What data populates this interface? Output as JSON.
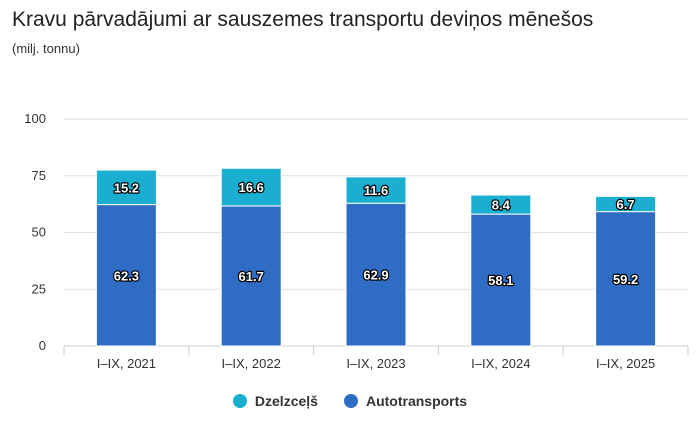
{
  "title": "Kravu pārvadājumi ar sauszemes transportu deviņos mēnešos",
  "subtitle": "(milj. tonnu)",
  "chart_data": {
    "type": "bar",
    "stacked": true,
    "categories": [
      "I–IX, 2021",
      "I–IX, 2022",
      "I–IX, 2023",
      "I–IX, 2024",
      "I–IX, 2025"
    ],
    "series": [
      {
        "name": "Autotransports",
        "color": "#2f6dc4",
        "values": [
          62.3,
          61.7,
          62.9,
          58.1,
          59.2
        ]
      },
      {
        "name": "Dzelzceļš",
        "color": "#1aafd0",
        "values": [
          15.2,
          16.6,
          11.6,
          8.4,
          6.7
        ]
      }
    ],
    "ylim": [
      0,
      100
    ],
    "yticks": [
      0,
      25,
      50,
      75,
      100
    ],
    "grid": true,
    "legend": "bottom",
    "legend_order": [
      "Dzelzceļš",
      "Autotransports"
    ]
  }
}
